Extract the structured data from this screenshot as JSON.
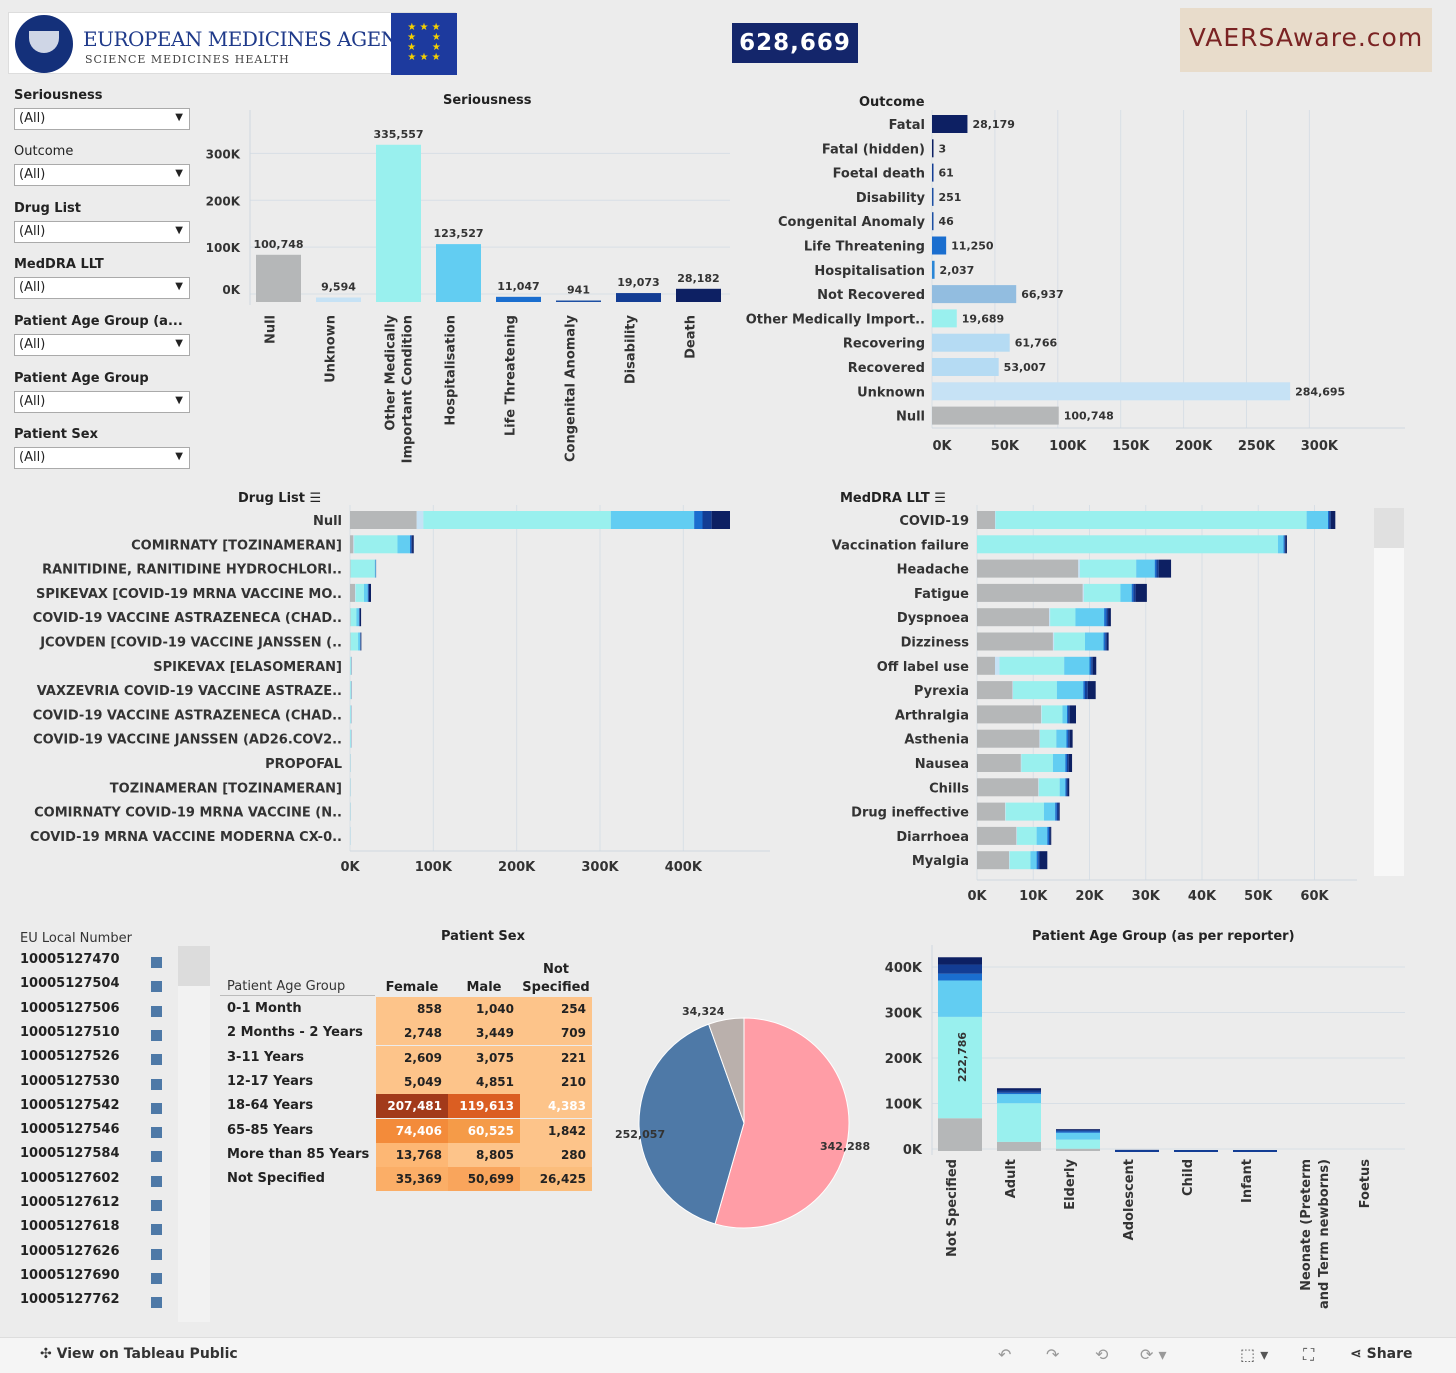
{
  "header": {
    "ema_name": "EUROPEAN MEDICINES AGENCY",
    "ema_tagline": "SCIENCE  MEDICINES  HEALTH",
    "total_count": "628,669",
    "site_logo": "VAERSAware.com"
  },
  "filters": [
    {
      "label": "Seriousness",
      "value": "(All)"
    },
    {
      "label": "Outcome",
      "value": "(All)"
    },
    {
      "label": "Drug List",
      "value": "(All)"
    },
    {
      "label": "MedDRA LLT",
      "value": "(All)"
    },
    {
      "label": "Patient Age Group (a...",
      "value": "(All)"
    },
    {
      "label": "Patient Age Group",
      "value": "(All)"
    },
    {
      "label": "Patient Sex",
      "value": "(All)"
    }
  ],
  "seriousness_chart": {
    "title": "Seriousness",
    "type": "bar",
    "categories": [
      "Null",
      "Unknown",
      "Other Medically Important Condition",
      "Hospitalisation",
      "Life Threatening",
      "Congenital Anomaly",
      "Disability",
      "Death"
    ],
    "values": [
      100748,
      9594,
      335557,
      123527,
      11047,
      941,
      19073,
      28182
    ],
    "labels": [
      "100,748",
      "9,594",
      "335,557",
      "123,527",
      "11,047",
      "941",
      "19,073",
      "28,182"
    ],
    "colors": [
      "#b5b7b8",
      "#c6e2f5",
      "#99f0ee",
      "#62cdf2",
      "#1a6ecf",
      "#1d4fa3",
      "#133d94",
      "#0d2063"
    ],
    "yticks": [
      "0K",
      "100K",
      "200K",
      "300K"
    ],
    "ylim": [
      0,
      350000
    ]
  },
  "outcome_chart": {
    "title": "Outcome",
    "type": "bar",
    "categories": [
      "Fatal",
      "Fatal (hidden)",
      "Foetal death",
      "Disability",
      "Congenital Anomaly",
      "Life Threatening",
      "Hospitalisation",
      "Not Recovered",
      "Other Medically Import..",
      "Recovering",
      "Recovered",
      "Unknown",
      "Null"
    ],
    "values": [
      28179,
      3,
      61,
      251,
      46,
      11250,
      2037,
      66937,
      19689,
      61766,
      53007,
      284695,
      100748
    ],
    "labels": [
      "28,179",
      "3",
      "61",
      "251",
      "46",
      "11,250",
      "2,037",
      "66,937",
      "19,689",
      "61,766",
      "53,007",
      "284,695",
      "100,748"
    ],
    "colors": [
      "#0d2063",
      "#0d2063",
      "#133d94",
      "#1d4fa3",
      "#1d4fa3",
      "#1a6ecf",
      "#2a86d6",
      "#92bde0",
      "#99f0ee",
      "#b5dbf3",
      "#b5dbf3",
      "#c6e2f5",
      "#b5b7b8"
    ],
    "xticks": [
      "0K",
      "50K",
      "100K",
      "150K",
      "200K",
      "250K",
      "300K"
    ],
    "xlim": [
      0,
      330000
    ]
  },
  "drug_chart": {
    "title": "Drug List",
    "type": "bar",
    "categories": [
      "Null",
      "COMIRNATY [TOZINAMERAN]",
      "RANITIDINE, RANITIDINE HYDROCHLORI..",
      "SPIKEVAX [COVID-19 MRNA VACCINE MO..",
      "COVID-19 VACCINE ASTRAZENECA (CHAD..",
      "JCOVDEN [COVID-19 VACCINE JANSSEN (..",
      "SPIKEVAX [ELASOMERAN]",
      "VAXZEVRIA COVID-19 VACCINE ASTRAZE..",
      "COVID-19 VACCINE ASTRAZENECA (CHAD..",
      "COVID-19 VACCINE JANSSEN (AD26.COV2..",
      "PROPOFAL",
      "TOZINAMERAN [TOZINAMERAN]",
      "COMIRNATY COVID-19 MRNA VACCINE (N..",
      "COVID-19 MRNA VACCINE MODERNA CX-0.."
    ],
    "series_colors": [
      "#b5b7b8",
      "#c6e2f5",
      "#99f0ee",
      "#62cdf2",
      "#1a6ecf",
      "#133d94",
      "#0d2063"
    ],
    "stacks": [
      [
        80000,
        8000,
        225000,
        100000,
        10000,
        11000,
        22000
      ],
      [
        4000,
        1000,
        52000,
        15000,
        1500,
        1000,
        2000
      ],
      [
        500,
        200,
        29000,
        1000,
        300,
        100,
        200
      ],
      [
        6000,
        800,
        10000,
        4500,
        800,
        600,
        2500
      ],
      [
        500,
        200,
        7000,
        3000,
        500,
        600,
        1500
      ],
      [
        500,
        200,
        9000,
        2500,
        300,
        300,
        800
      ],
      [
        100,
        50,
        900,
        400,
        50,
        50,
        200
      ],
      [
        100,
        50,
        900,
        400,
        50,
        50,
        200
      ],
      [
        100,
        50,
        800,
        300,
        50,
        50,
        150
      ],
      [
        100,
        50,
        800,
        300,
        50,
        50,
        150
      ],
      [
        50,
        20,
        300,
        100,
        20,
        20,
        50
      ],
      [
        50,
        20,
        300,
        100,
        20,
        20,
        50
      ],
      [
        50,
        20,
        300,
        100,
        20,
        20,
        50
      ],
      [
        20,
        10,
        200,
        80,
        10,
        10,
        30
      ]
    ],
    "xticks": [
      "0K",
      "100K",
      "200K",
      "300K",
      "400K"
    ],
    "xlim": [
      0,
      480000
    ]
  },
  "meddra_chart": {
    "title": "MedDRA LLT",
    "type": "bar",
    "categories": [
      "COVID-19",
      "Vaccination failure",
      "Headache",
      "Fatigue",
      "Dyspnoea",
      "Dizziness",
      "Off label use",
      "Pyrexia",
      "Arthralgia",
      "Asthenia",
      "Nausea",
      "Chills",
      "Drug ineffective",
      "Diarrhoea",
      "Myalgia"
    ],
    "series_colors": [
      "#b5b7b8",
      "#c6e2f5",
      "#99f0ee",
      "#62cdf2",
      "#1a6ecf",
      "#133d94",
      "#0d2063"
    ],
    "stacks": [
      [
        3200,
        100,
        55300,
        3800,
        200,
        300,
        800
      ],
      [
        0,
        0,
        53500,
        1000,
        200,
        100,
        300
      ],
      [
        18000,
        300,
        10000,
        3300,
        300,
        400,
        2200
      ],
      [
        18800,
        200,
        6500,
        2000,
        300,
        400,
        2000
      ],
      [
        12800,
        200,
        4500,
        5100,
        400,
        300,
        500
      ],
      [
        13500,
        200,
        5500,
        3300,
        300,
        300,
        300
      ],
      [
        3200,
        800,
        11500,
        4500,
        300,
        300,
        600
      ],
      [
        6300,
        100,
        7800,
        4700,
        300,
        500,
        1400
      ],
      [
        11400,
        100,
        3700,
        800,
        200,
        300,
        1100
      ],
      [
        11100,
        100,
        2900,
        1800,
        300,
        300,
        500
      ],
      [
        7800,
        100,
        5600,
        2200,
        300,
        300,
        600
      ],
      [
        10900,
        100,
        3700,
        1000,
        200,
        200,
        300
      ],
      [
        5000,
        100,
        6800,
        2000,
        300,
        300,
        200
      ],
      [
        7000,
        100,
        3500,
        1900,
        300,
        200,
        200
      ],
      [
        5700,
        100,
        3700,
        1100,
        300,
        300,
        1300
      ]
    ],
    "xticks": [
      "0K",
      "10K",
      "20K",
      "30K",
      "40K",
      "50K",
      "60K"
    ],
    "xlim": [
      0,
      64000
    ]
  },
  "eu_list": {
    "title": "EU Local Number",
    "items": [
      "10005127470",
      "10005127504",
      "10005127506",
      "10005127510",
      "10005127526",
      "10005127530",
      "10005127542",
      "10005127546",
      "10005127584",
      "10005127602",
      "10005127612",
      "10005127618",
      "10005127626",
      "10005127690",
      "10005127762"
    ]
  },
  "patient_sex": {
    "title": "Patient Sex",
    "row_header": "Patient Age Group",
    "col_headers": [
      "Female",
      "Male",
      "Not Specified"
    ],
    "rows": [
      {
        "label": "0-1 Month",
        "vals": [
          "858",
          "1,040",
          "254"
        ],
        "colors": [
          "#fdc48a",
          "#fdc48a",
          "#fdc48a"
        ]
      },
      {
        "label": "2 Months - 2 Years",
        "vals": [
          "2,748",
          "3,449",
          "709"
        ],
        "colors": [
          "#fdc48a",
          "#fdc48a",
          "#fdc48a"
        ]
      },
      {
        "label": "3-11 Years",
        "vals": [
          "2,609",
          "3,075",
          "221"
        ],
        "colors": [
          "#fdc48a",
          "#fdc48a",
          "#fdc48a"
        ]
      },
      {
        "label": "12-17 Years",
        "vals": [
          "5,049",
          "4,851",
          "210"
        ],
        "colors": [
          "#fdc48a",
          "#fdc48a",
          "#fdc48a"
        ]
      },
      {
        "label": "18-64 Years",
        "vals": [
          "207,481",
          "119,613",
          "4,383"
        ],
        "colors": [
          "#a23a1a",
          "#db5e22",
          "#fdc48a"
        ]
      },
      {
        "label": "65-85 Years",
        "vals": [
          "74,406",
          "60,525",
          "1,842"
        ],
        "colors": [
          "#f38b3a",
          "#f59b48",
          "#fdc48a"
        ]
      },
      {
        "label": "More than 85 Years",
        "vals": [
          "13,768",
          "8,805",
          "280"
        ],
        "colors": [
          "#fdb774",
          "#fdc48a",
          "#fdc48a"
        ]
      },
      {
        "label": "Not Specified",
        "vals": [
          "35,369",
          "50,699",
          "26,425"
        ],
        "colors": [
          "#fbae67",
          "#f9a55c",
          "#fbbd7c"
        ]
      }
    ],
    "pie": {
      "type": "pie",
      "labels": [
        "342,288",
        "252,057",
        "34,324"
      ],
      "values": [
        342288,
        252057,
        34324
      ],
      "colors": [
        "#ff9da6",
        "#4e79a7",
        "#bab0ac"
      ]
    }
  },
  "age_chart": {
    "title": "Patient Age Group (as per reporter)",
    "type": "bar",
    "categories": [
      "Not Specified",
      "Adult",
      "Elderly",
      "Adolescent",
      "Child",
      "Infant",
      "Neonate (Preterm and Term newborns)",
      "Foetus"
    ],
    "series_colors": [
      "#b5b7b8",
      "#99f0ee",
      "#62cdf2",
      "#1a6ecf",
      "#133d94",
      "#0d2063"
    ],
    "stacks": [
      [
        72000,
        222786,
        80000,
        15000,
        20000,
        16000
      ],
      [
        20000,
        85000,
        20000,
        3000,
        5000,
        5000
      ],
      [
        5000,
        20000,
        15000,
        3000,
        3000,
        2000
      ],
      [
        200,
        1000,
        700,
        200,
        200,
        200
      ],
      [
        100,
        600,
        400,
        100,
        100,
        100
      ],
      [
        100,
        500,
        400,
        100,
        100,
        100
      ],
      [
        0,
        0,
        0,
        0,
        0,
        0
      ],
      [
        0,
        0,
        0,
        0,
        0,
        0
      ]
    ],
    "in_bar_label": "222,786",
    "yticks": [
      "0K",
      "100K",
      "200K",
      "300K",
      "400K"
    ],
    "ylim": [
      0,
      430000
    ]
  },
  "footer": {
    "view_link": "View on Tableau Public",
    "share": "Share"
  }
}
